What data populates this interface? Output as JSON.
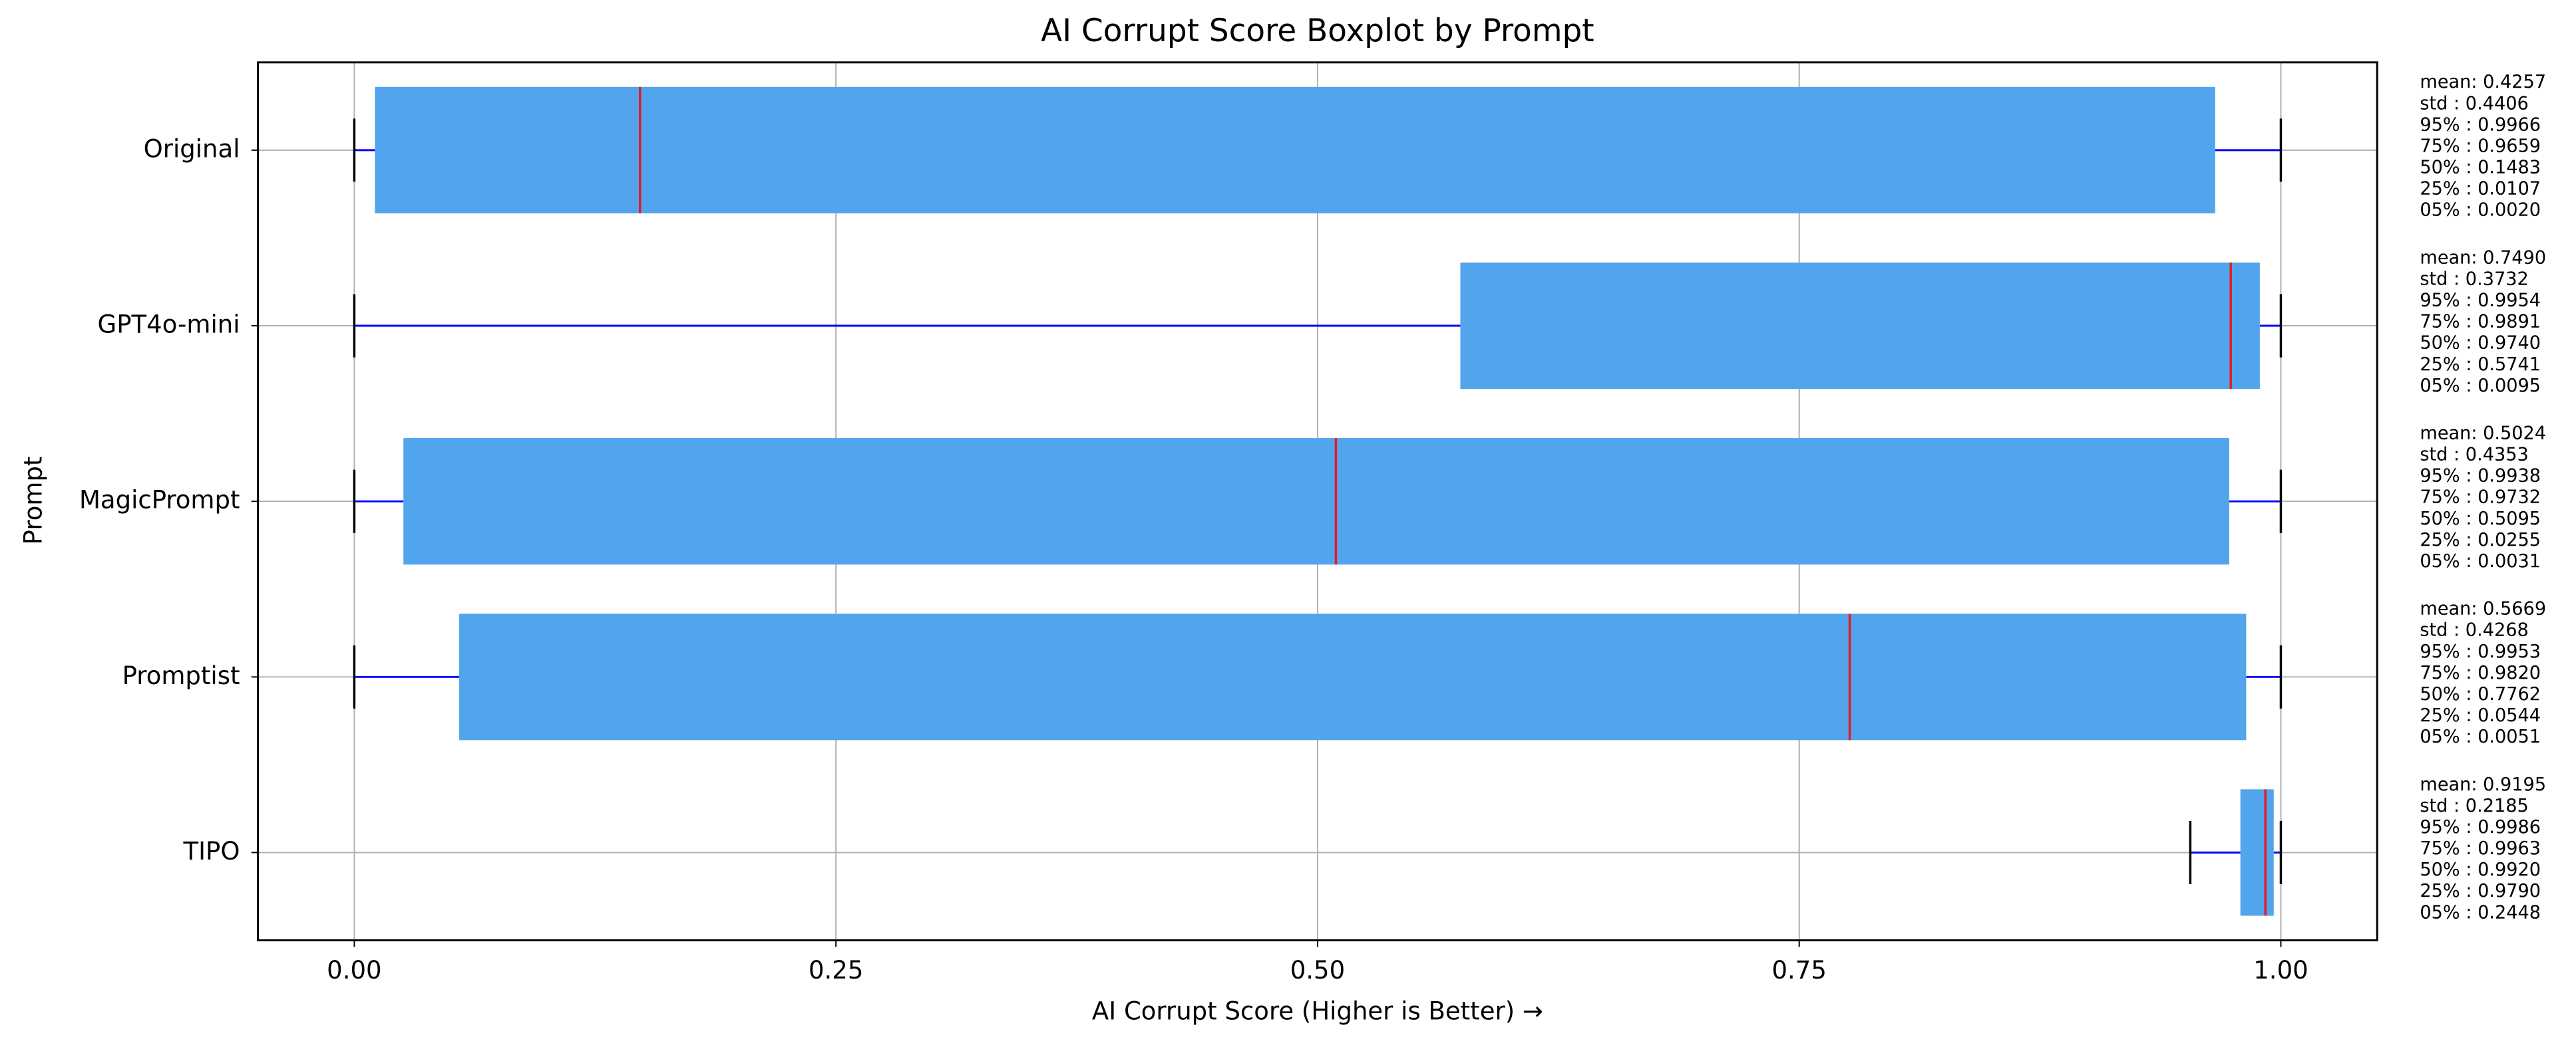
{
  "chart_data": {
    "type": "boxplot",
    "title": "AI Corrupt Score Boxplot by Prompt",
    "x_label": "AI Corrupt Score (Higher is Better) →",
    "y_label": "Prompt",
    "categories": [
      "Original",
      "GPT4o-mini",
      "MagicPrompt",
      "Promptist",
      "TIPO"
    ],
    "boxes": [
      {
        "whislo": 0.0,
        "q1": 0.0107,
        "med": 0.1483,
        "q3": 0.9659,
        "whishi": 1.0
      },
      {
        "whislo": 0.0,
        "q1": 0.5741,
        "med": 0.974,
        "q3": 0.9891,
        "whishi": 1.0
      },
      {
        "whislo": 0.0,
        "q1": 0.0255,
        "med": 0.5095,
        "q3": 0.9732,
        "whishi": 1.0
      },
      {
        "whislo": 0.0,
        "q1": 0.0544,
        "med": 0.7762,
        "q3": 0.982,
        "whishi": 1.0
      },
      {
        "whislo": 0.953,
        "q1": 0.979,
        "med": 0.992,
        "q3": 0.9963,
        "whishi": 1.0
      }
    ],
    "annotations": [
      [
        "mean: 0.4257",
        "std : 0.4406",
        "95% : 0.9966",
        "75% : 0.9659",
        "50% : 0.1483",
        "25% : 0.0107",
        "05% : 0.0020"
      ],
      [
        "mean: 0.7490",
        "std : 0.3732",
        "95% : 0.9954",
        "75% : 0.9891",
        "50% : 0.9740",
        "25% : 0.5741",
        "05% : 0.0095"
      ],
      [
        "mean: 0.5024",
        "std : 0.4353",
        "95% : 0.9938",
        "75% : 0.9732",
        "50% : 0.5095",
        "25% : 0.0255",
        "05% : 0.0031"
      ],
      [
        "mean: 0.5669",
        "std : 0.4268",
        "95% : 0.9953",
        "75% : 0.9820",
        "50% : 0.7762",
        "25% : 0.0544",
        "05% : 0.0051"
      ],
      [
        "mean: 0.9195",
        "std : 0.2185",
        "95% : 0.9986",
        "75% : 0.9963",
        "50% : 0.9920",
        "25% : 0.9790",
        "05% : 0.2448"
      ]
    ],
    "xlim": [
      -0.05,
      1.05
    ],
    "xticks": [
      {
        "value": 0,
        "label": "0.00"
      },
      {
        "value": 0.25,
        "label": "0.25"
      },
      {
        "value": 0.5,
        "label": "0.50"
      },
      {
        "value": 0.75,
        "label": "0.75"
      },
      {
        "value": 1,
        "label": "1.00"
      }
    ],
    "grid": true,
    "box_color": "#52a4ec",
    "median_color": "#e8191c",
    "whisker_color": "#0000ff",
    "cap_color": "#000000"
  }
}
